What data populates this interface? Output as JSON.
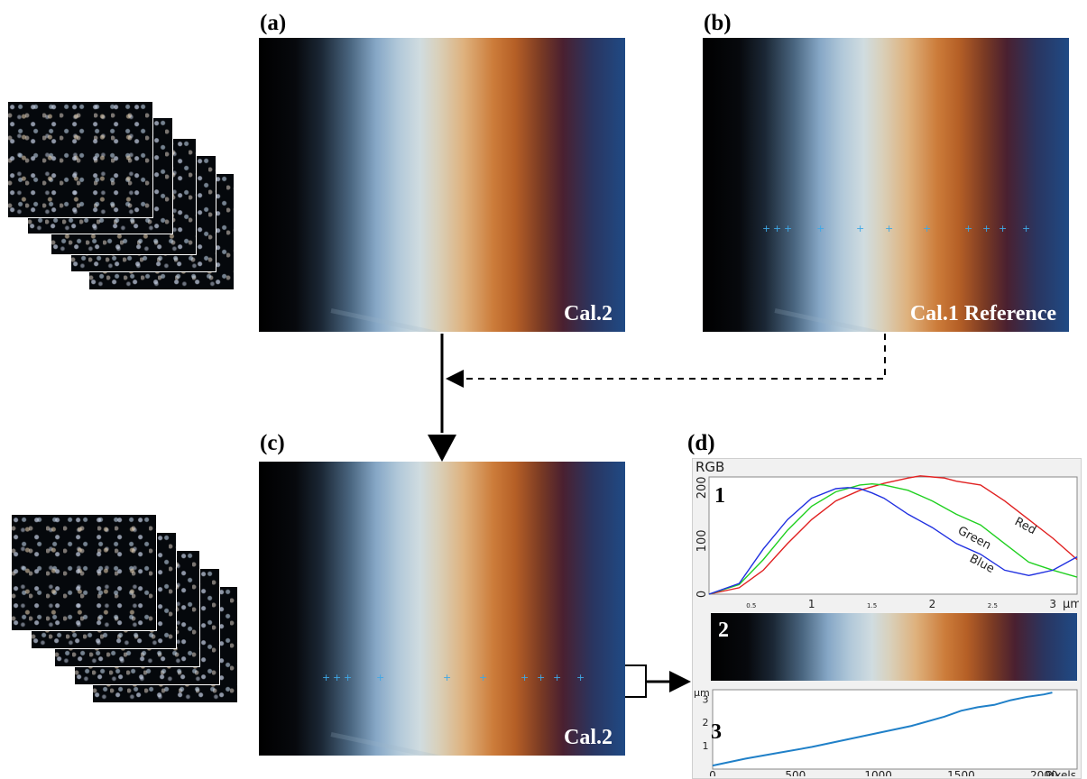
{
  "panels": {
    "a": {
      "letter": "(a)",
      "label": "Cal.2"
    },
    "b": {
      "letter": "(b)",
      "label": "Cal.1 Reference"
    },
    "c": {
      "letter": "(c)",
      "label": "Cal.2"
    },
    "d": {
      "letter": "(d)"
    }
  },
  "rgb_window": {
    "title": "RGB"
  },
  "subplots": {
    "one": "1",
    "two": "2",
    "three": "3"
  },
  "chart_data": [
    {
      "type": "line",
      "xlabel": "μm",
      "ylabel": "",
      "xlim": [
        0.15,
        3.2
      ],
      "ylim": [
        0,
        220
      ],
      "x_ticks": [
        "0.5",
        "1",
        "1.5",
        "2",
        "2.5",
        "3"
      ],
      "y_ticks": [
        "0",
        "100",
        "200"
      ],
      "series": [
        {
          "name": "Red",
          "color": "#e02020",
          "x": [
            0.15,
            0.4,
            0.6,
            0.8,
            1.0,
            1.2,
            1.4,
            1.6,
            1.8,
            1.9,
            2.0,
            2.1,
            2.2,
            2.4,
            2.6,
            2.8,
            3.0,
            3.2
          ],
          "y": [
            0,
            12,
            45,
            95,
            140,
            175,
            195,
            208,
            218,
            222,
            220,
            218,
            212,
            205,
            175,
            140,
            105,
            65
          ]
        },
        {
          "name": "Green",
          "color": "#20d020",
          "x": [
            0.15,
            0.4,
            0.6,
            0.8,
            1.0,
            1.2,
            1.4,
            1.5,
            1.6,
            1.8,
            2.0,
            2.2,
            2.4,
            2.6,
            2.8,
            3.0,
            3.2
          ],
          "y": [
            0,
            18,
            65,
            120,
            165,
            192,
            205,
            207,
            205,
            195,
            175,
            150,
            130,
            95,
            60,
            45,
            32
          ]
        },
        {
          "name": "Blue",
          "color": "#2030e0",
          "x": [
            0.15,
            0.4,
            0.6,
            0.8,
            1.0,
            1.2,
            1.3,
            1.4,
            1.5,
            1.6,
            1.8,
            2.0,
            2.2,
            2.4,
            2.6,
            2.8,
            3.0,
            3.2
          ],
          "y": [
            0,
            20,
            85,
            140,
            180,
            198,
            200,
            198,
            190,
            180,
            150,
            125,
            95,
            75,
            45,
            35,
            45,
            70
          ]
        }
      ],
      "annotations": [
        "Red",
        "Green",
        "Blue"
      ]
    },
    {
      "type": "line",
      "xlabel": "Pixels",
      "ylabel": "μm",
      "xlim": [
        0,
        2200
      ],
      "ylim": [
        0,
        3.4
      ],
      "x_ticks": [
        "0",
        "500",
        "1000",
        "1500",
        "2000"
      ],
      "y_ticks": [
        "1",
        "2",
        "3"
      ],
      "series": [
        {
          "color": "#2080c8",
          "x": [
            0,
            200,
            400,
            600,
            800,
            1000,
            1200,
            1400,
            1500,
            1600,
            1700,
            1800,
            1900,
            2000,
            2050
          ],
          "y": [
            0.15,
            0.45,
            0.7,
            0.95,
            1.25,
            1.55,
            1.85,
            2.25,
            2.5,
            2.65,
            2.75,
            2.95,
            3.1,
            3.2,
            3.28
          ]
        }
      ]
    }
  ]
}
